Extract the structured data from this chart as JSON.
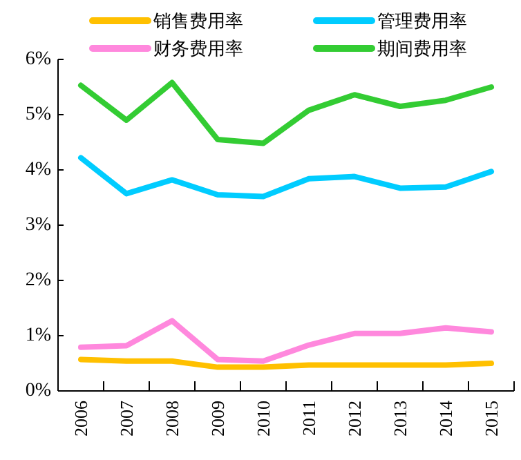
{
  "chart_data": {
    "type": "line",
    "categories": [
      "2006",
      "2007",
      "2008",
      "2009",
      "2010",
      "2011",
      "2012",
      "2013",
      "2014",
      "2015"
    ],
    "series": [
      {
        "name": "销售费用率",
        "color": "#ffc000",
        "values": [
          0.57,
          0.54,
          0.54,
          0.43,
          0.43,
          0.47,
          0.47,
          0.47,
          0.47,
          0.5
        ]
      },
      {
        "name": "管理费用率",
        "color": "#00ccff",
        "values": [
          4.22,
          3.57,
          3.82,
          3.55,
          3.52,
          3.84,
          3.88,
          3.67,
          3.69,
          3.97
        ]
      },
      {
        "name": "财务费用率",
        "color": "#ff88dd",
        "values": [
          0.79,
          0.82,
          1.27,
          0.57,
          0.54,
          0.83,
          1.04,
          1.04,
          1.14,
          1.07
        ]
      },
      {
        "name": "期间费用率",
        "color": "#33cc33",
        "values": [
          5.53,
          4.9,
          5.58,
          4.55,
          4.48,
          5.08,
          5.36,
          5.15,
          5.26,
          5.5
        ]
      }
    ],
    "ylim": [
      0,
      6
    ],
    "yticks": [
      {
        "value": 0,
        "label": "0%"
      },
      {
        "value": 1,
        "label": "1%"
      },
      {
        "value": 2,
        "label": "2%"
      },
      {
        "value": 3,
        "label": "3%"
      },
      {
        "value": 4,
        "label": "4%"
      },
      {
        "value": 5,
        "label": "5%"
      },
      {
        "value": 6,
        "label": "6%"
      }
    ],
    "legend": "top"
  }
}
